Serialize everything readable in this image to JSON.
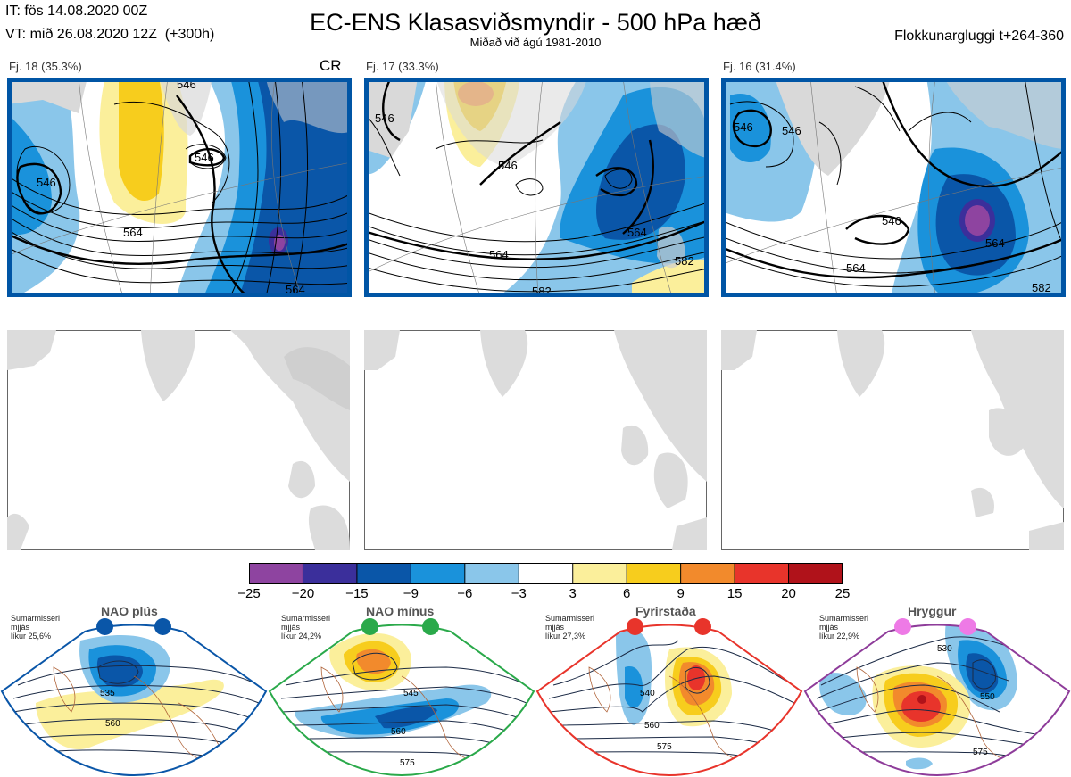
{
  "header": {
    "init_time": "IT: fös 14.08.2020 00Z",
    "valid_time": "VT: mið 26.08.2020 12Z  (+300h)",
    "title": "EC-ENS Klasasviðsmyndir - 500 hPa hæð",
    "subtitle": "Miðað við ágú 1981-2010",
    "cluster_window": "Flokkunargluggi t+264-360"
  },
  "clusters": [
    {
      "label": "Fj. 18 (35.3%)",
      "marker": "CR",
      "frame_color": "#0055a5",
      "contour_labels": [
        "546",
        "546",
        "564",
        "546",
        "564"
      ]
    },
    {
      "label": "Fj. 17 (33.3%)",
      "frame_color": "#0055a5",
      "contour_labels": [
        "546",
        "546",
        "564",
        "564",
        "582",
        "582"
      ]
    },
    {
      "label": "Fj. 16 (31.4%)",
      "frame_color": "#0055a5",
      "contour_labels": [
        "546",
        "546",
        "546",
        "564",
        "564",
        "582"
      ]
    }
  ],
  "colorbar": {
    "ticks": [
      "−25",
      "−20",
      "−15",
      "−9",
      "−6",
      "−3",
      "3",
      "6",
      "9",
      "15",
      "20",
      "25"
    ],
    "colors": [
      "#8e44a0",
      "#3b2f9b",
      "#0a56a8",
      "#1a92db",
      "#8ac6ea",
      "#ffffff",
      "#fbef9b",
      "#f7cd1d",
      "#f28a2c",
      "#e8342b",
      "#b0121a"
    ]
  },
  "regimes": [
    {
      "name": "NAO plús",
      "season": "Sumarmisseri",
      "note": "mjjás",
      "likelihood": "líkur 25,6%",
      "color": "#0a56a8",
      "contour_labels": [
        "535",
        "560"
      ]
    },
    {
      "name": "NAO mínus",
      "season": "Sumarmisseri",
      "note": "mjjás",
      "likelihood": "líkur 24,2%",
      "color": "#2aa94a",
      "contour_labels": [
        "545",
        "560",
        "575"
      ]
    },
    {
      "name": "Fyrirstaða",
      "season": "Sumarmisseri",
      "note": "mjjás",
      "likelihood": "líkur 27,3%",
      "color": "#e8342b",
      "contour_labels": [
        "540",
        "560",
        "575"
      ]
    },
    {
      "name": "Hryggur",
      "season": "Sumarmisseri",
      "note": "mjjás",
      "likelihood": "líkur 22,9%",
      "color": "#8e3c9a",
      "dot_color": "#ee7ae6",
      "contour_labels": [
        "530",
        "550",
        "575"
      ]
    }
  ]
}
